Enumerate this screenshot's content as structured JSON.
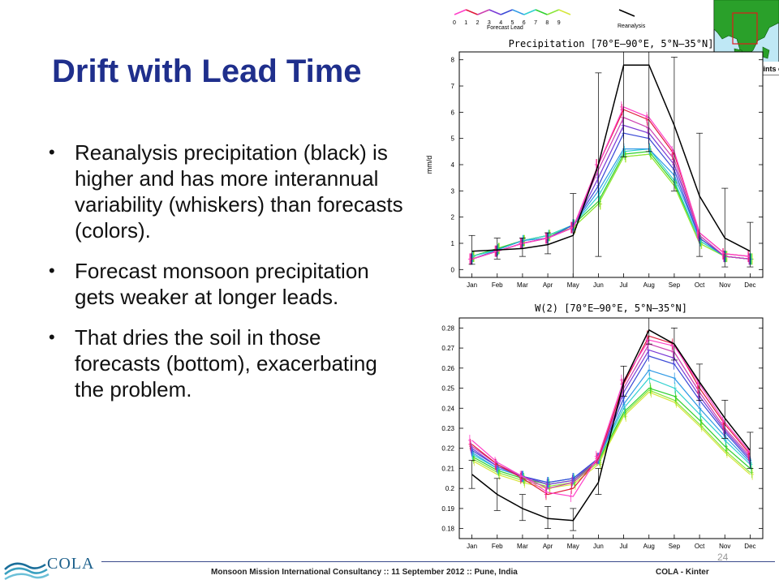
{
  "slide": {
    "title": "Drift with Lead Time",
    "bullets": [
      "Reanalysis precipitation (black) is higher and has more interannual variability (whiskers) than forecasts (colors).",
      "Forecast monsoon precipitation gets weaker at longer leads.",
      "That dries the soil in those forecasts (bottom), exacerbating the problem."
    ],
    "footer": "Monsoon Mission International Consultancy :: 11 September 2012 :: Pune, India",
    "footer_right": "COLA - Kinter",
    "page_number": "24",
    "logo_text": "COLA"
  },
  "legend": {
    "leads": [
      "0",
      "1",
      "2",
      "3",
      "4",
      "5",
      "6",
      "7",
      "8",
      "9"
    ],
    "lead_title": "Forecast Lead",
    "reanalysis_label": "Reanalysis",
    "lead_colors": [
      "#ff3fc8",
      "#e01a3a",
      "#cc3fb0",
      "#7a3ad6",
      "#3a4ad6",
      "#2f9ae6",
      "#2fd0d0",
      "#2fd02f",
      "#8ae63a",
      "#d6e63a"
    ],
    "reanalysis_color": "#000000"
  },
  "inset_map": {
    "label": "Land grid points only"
  },
  "chart_data": [
    {
      "type": "line",
      "title": "Precipitation [70°E–90°E, 5°N–35°N]",
      "ylabel": "mm/d",
      "xlabel": "",
      "categories": [
        "Jan",
        "Feb",
        "Mar",
        "Apr",
        "May",
        "Jun",
        "Jul",
        "Aug",
        "Sep",
        "Oct",
        "Nov",
        "Dec"
      ],
      "ylim": [
        -0.3,
        8.3
      ],
      "yticks": [
        0,
        1,
        2,
        3,
        4,
        5,
        6,
        7,
        8
      ],
      "ytick_labels": [
        "0",
        "1",
        "2",
        "3",
        "4",
        "5",
        "6",
        "7",
        "8"
      ],
      "reanalysis": {
        "values": [
          0.7,
          0.75,
          0.8,
          0.95,
          1.3,
          4.0,
          7.8,
          7.8,
          5.5,
          2.8,
          1.2,
          0.7
        ],
        "whisker_low": [
          0.2,
          0.4,
          0.5,
          0.6,
          -0.3,
          0.5,
          4.3,
          4.5,
          3.0,
          0.5,
          0.1,
          0.1
        ],
        "whisker_high": [
          1.3,
          1.2,
          1.2,
          1.4,
          2.9,
          7.5,
          8.3,
          8.3,
          8.1,
          5.2,
          3.1,
          1.8
        ]
      },
      "series": [
        {
          "values": [
            0.4,
            0.7,
            1.0,
            1.2,
            1.6,
            4.0,
            6.2,
            5.8,
            4.5,
            1.4,
            0.6,
            0.5
          ]
        },
        {
          "values": [
            0.4,
            0.7,
            1.0,
            1.2,
            1.6,
            4.0,
            6.1,
            5.7,
            4.4,
            1.4,
            0.6,
            0.5
          ]
        },
        {
          "values": [
            0.4,
            0.7,
            1.0,
            1.2,
            1.6,
            3.8,
            5.8,
            5.4,
            4.2,
            1.3,
            0.5,
            0.4
          ]
        },
        {
          "values": [
            0.4,
            0.7,
            1.0,
            1.2,
            1.6,
            3.5,
            5.5,
            5.2,
            4.0,
            1.3,
            0.5,
            0.4
          ]
        },
        {
          "values": [
            0.4,
            0.7,
            1.0,
            1.2,
            1.7,
            3.2,
            5.2,
            5.0,
            3.8,
            1.2,
            0.5,
            0.4
          ]
        },
        {
          "values": [
            0.4,
            0.75,
            1.1,
            1.2,
            1.7,
            3.0,
            4.6,
            4.6,
            3.6,
            1.2,
            0.5,
            0.4
          ]
        },
        {
          "values": [
            0.5,
            0.75,
            1.1,
            1.3,
            1.7,
            2.8,
            4.5,
            4.6,
            3.4,
            1.1,
            0.5,
            0.4
          ]
        },
        {
          "values": [
            0.5,
            0.8,
            1.1,
            1.3,
            1.7,
            2.6,
            4.4,
            4.5,
            3.3,
            1.1,
            0.5,
            0.4
          ]
        },
        {
          "values": [
            0.5,
            0.8,
            1.1,
            1.3,
            1.6,
            2.5,
            4.3,
            4.4,
            3.2,
            1.0,
            0.5,
            0.4
          ]
        },
        {
          "values": [
            0.5,
            0.8,
            1.1,
            1.3,
            1.6,
            2.5,
            4.3,
            4.4,
            3.2,
            1.0,
            0.5,
            0.4
          ]
        }
      ]
    },
    {
      "type": "line",
      "title": "W(2) [70°E–90°E, 5°N–35°N]",
      "ylabel": "",
      "xlabel": "",
      "categories": [
        "Jan",
        "Feb",
        "Mar",
        "Apr",
        "May",
        "Jun",
        "Jul",
        "Aug",
        "Sep",
        "Oct",
        "Nov",
        "Dec"
      ],
      "ylim": [
        0.175,
        0.285
      ],
      "yticks": [
        0.18,
        0.19,
        0.2,
        0.21,
        0.22,
        0.23,
        0.24,
        0.25,
        0.26,
        0.27,
        0.28
      ],
      "ytick_labels": [
        "0.18",
        "0.19",
        "0.2",
        "0.21",
        "0.22",
        "0.23",
        "0.24",
        "0.25",
        "0.26",
        "0.27",
        "0.28"
      ],
      "reanalysis": {
        "values": [
          0.207,
          0.197,
          0.19,
          0.185,
          0.184,
          0.203,
          0.253,
          0.279,
          0.272,
          0.253,
          0.235,
          0.219
        ],
        "whisker_low": [
          0.2,
          0.189,
          0.184,
          0.18,
          0.179,
          0.197,
          0.246,
          0.272,
          0.264,
          0.244,
          0.225,
          0.21
        ],
        "whisker_high": [
          0.214,
          0.205,
          0.197,
          0.191,
          0.19,
          0.21,
          0.261,
          0.285,
          0.28,
          0.262,
          0.244,
          0.228
        ]
      },
      "series": [
        {
          "values": [
            0.224,
            0.213,
            0.206,
            0.198,
            0.196,
            0.216,
            0.254,
            0.274,
            0.271,
            0.252,
            0.233,
            0.218
          ]
        },
        {
          "values": [
            0.222,
            0.212,
            0.205,
            0.197,
            0.2,
            0.215,
            0.252,
            0.276,
            0.272,
            0.25,
            0.232,
            0.217
          ]
        },
        {
          "values": [
            0.221,
            0.212,
            0.206,
            0.2,
            0.203,
            0.214,
            0.25,
            0.272,
            0.268,
            0.248,
            0.23,
            0.216
          ]
        },
        {
          "values": [
            0.22,
            0.211,
            0.206,
            0.202,
            0.204,
            0.215,
            0.248,
            0.269,
            0.265,
            0.246,
            0.229,
            0.215
          ]
        },
        {
          "values": [
            0.219,
            0.211,
            0.206,
            0.203,
            0.205,
            0.215,
            0.245,
            0.266,
            0.262,
            0.244,
            0.228,
            0.214
          ]
        },
        {
          "values": [
            0.218,
            0.21,
            0.206,
            0.203,
            0.205,
            0.215,
            0.242,
            0.259,
            0.255,
            0.24,
            0.226,
            0.213
          ]
        },
        {
          "values": [
            0.217,
            0.21,
            0.206,
            0.203,
            0.205,
            0.215,
            0.24,
            0.255,
            0.25,
            0.237,
            0.224,
            0.212
          ]
        },
        {
          "values": [
            0.216,
            0.209,
            0.205,
            0.202,
            0.204,
            0.214,
            0.238,
            0.25,
            0.246,
            0.234,
            0.221,
            0.21
          ]
        },
        {
          "values": [
            0.215,
            0.208,
            0.204,
            0.201,
            0.203,
            0.213,
            0.237,
            0.249,
            0.244,
            0.232,
            0.219,
            0.208
          ]
        },
        {
          "values": [
            0.214,
            0.207,
            0.203,
            0.2,
            0.202,
            0.212,
            0.236,
            0.248,
            0.243,
            0.231,
            0.218,
            0.207
          ]
        }
      ]
    }
  ]
}
